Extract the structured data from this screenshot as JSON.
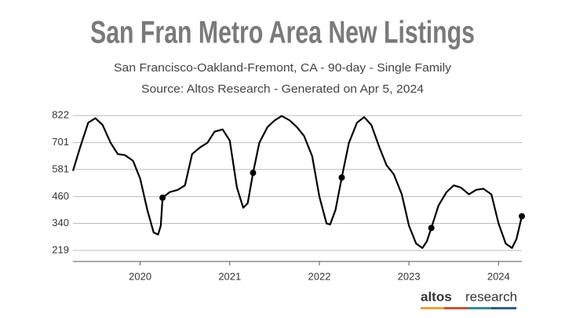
{
  "chart_data": {
    "type": "line",
    "title": "San Fran Metro Area New Listings",
    "subtitle": "San Francisco-Oakland-Fremont, CA - 90-day - Single Family",
    "source": "Source: Altos Research - Generated on Apr 5, 2024",
    "logo": {
      "brand": "altos",
      "suffix": "research"
    },
    "x": [
      2019.25,
      2019.33,
      2019.42,
      2019.5,
      2019.58,
      2019.67,
      2019.75,
      2019.83,
      2019.92,
      2020.0,
      2020.08,
      2020.15,
      2020.2,
      2020.23,
      2020.25,
      2020.33,
      2020.42,
      2020.5,
      2020.58,
      2020.67,
      2020.75,
      2020.83,
      2020.92,
      2021.0,
      2021.08,
      2021.15,
      2021.2,
      2021.26,
      2021.33,
      2021.42,
      2021.5,
      2021.58,
      2021.67,
      2021.75,
      2021.83,
      2021.92,
      2022.0,
      2022.08,
      2022.12,
      2022.18,
      2022.25,
      2022.33,
      2022.42,
      2022.5,
      2022.58,
      2022.67,
      2022.75,
      2022.83,
      2022.92,
      2023.0,
      2023.08,
      2023.15,
      2023.2,
      2023.25,
      2023.33,
      2023.42,
      2023.5,
      2023.58,
      2023.67,
      2023.75,
      2023.83,
      2023.92,
      2024.0,
      2024.08,
      2024.15,
      2024.2,
      2024.26
    ],
    "series": [
      {
        "color": "#000000",
        "values": [
          575,
          680,
          790,
          810,
          780,
          700,
          650,
          645,
          620,
          540,
          400,
          300,
          290,
          330,
          455,
          480,
          490,
          510,
          650,
          680,
          700,
          750,
          760,
          710,
          500,
          410,
          430,
          566,
          700,
          770,
          800,
          820,
          800,
          770,
          730,
          640,
          460,
          340,
          335,
          400,
          545,
          700,
          790,
          815,
          780,
          680,
          600,
          560,
          470,
          330,
          250,
          230,
          260,
          320,
          420,
          480,
          510,
          500,
          470,
          490,
          495,
          470,
          340,
          250,
          230,
          270,
          372
        ]
      }
    ],
    "markers": {
      "color": "#000000",
      "x": [
        2020.25,
        2021.26,
        2022.25,
        2023.25,
        2024.26
      ],
      "values": [
        455,
        566,
        545,
        320,
        372
      ]
    },
    "xlim": [
      2019.25,
      2024.26
    ],
    "xticks": [
      2020,
      2021,
      2022,
      2023,
      2024
    ],
    "ylim": [
      170,
      840
    ],
    "yticks": [
      219,
      340,
      460,
      581,
      701,
      822
    ],
    "grid": true
  }
}
